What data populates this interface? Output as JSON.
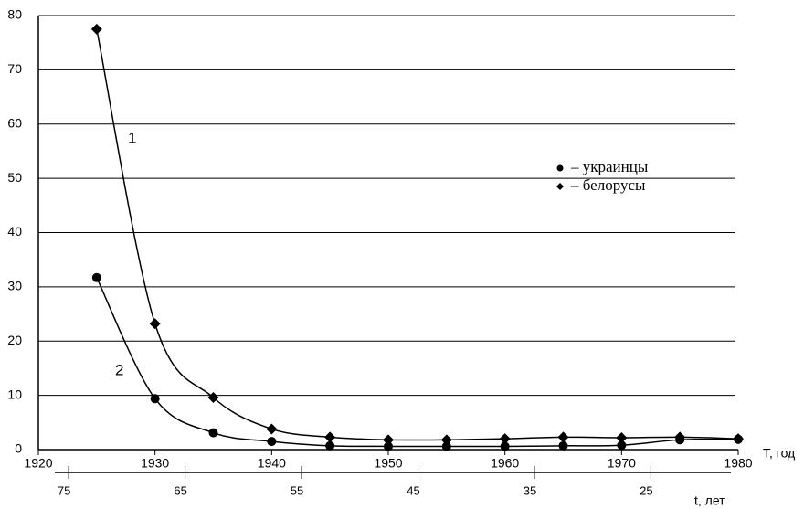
{
  "chart_data": {
    "type": "line",
    "x": [
      1925,
      1930,
      1935,
      1940,
      1945,
      1950,
      1955,
      1960,
      1965,
      1970,
      1975,
      1980
    ],
    "series": [
      {
        "name": "– украинцы",
        "color": "#000000",
        "marker": "circle",
        "values": [
          31.7,
          9.4,
          3.1,
          1.5,
          0.7,
          0.6,
          0.6,
          0.6,
          0.7,
          0.8,
          1.8,
          1.9
        ]
      },
      {
        "name": "– белорусы",
        "color": "#000000",
        "marker": "diamond",
        "values": [
          77.5,
          23.2,
          9.6,
          3.8,
          2.3,
          1.8,
          1.8,
          2.0,
          2.3,
          2.2,
          2.3,
          2.0
        ]
      }
    ],
    "annotations": [
      "1",
      "2"
    ],
    "xlabel": "T, год",
    "x2label": "t, лет",
    "xlim": [
      1920,
      1980
    ],
    "xticks": [
      1920,
      1930,
      1940,
      1950,
      1960,
      1970,
      1980
    ],
    "x2lim": [
      77.6,
      17.5
    ],
    "x2ticks": [
      75,
      65,
      55,
      45,
      35,
      25
    ],
    "ylim": [
      0,
      80
    ],
    "yticks": [
      0,
      10,
      20,
      30,
      40,
      50,
      60,
      70,
      80
    ],
    "grid": true
  }
}
